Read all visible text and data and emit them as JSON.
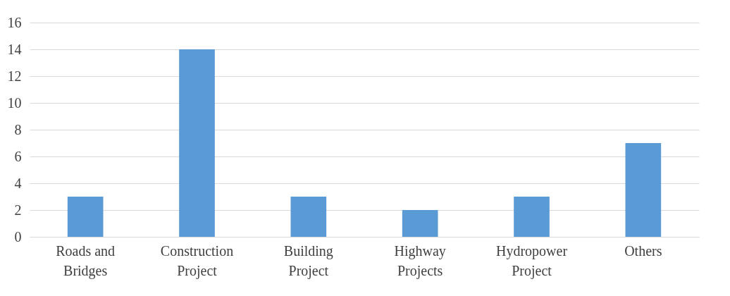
{
  "chart_data": {
    "type": "bar",
    "categories": [
      "Roads and Bridges",
      "Construction Project",
      "Building Project",
      "Highway Projects",
      "Hydropower Project",
      "Others"
    ],
    "values": [
      3,
      14,
      3,
      2,
      3,
      7
    ],
    "color": "#5b9bd5",
    "ylim": [
      0,
      16
    ],
    "yticks": [
      0,
      2,
      4,
      6,
      8,
      10,
      12,
      14,
      16
    ],
    "grid": "y"
  }
}
